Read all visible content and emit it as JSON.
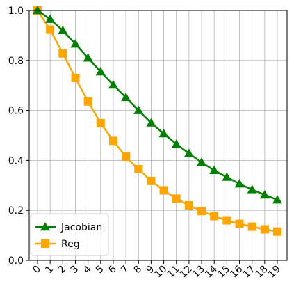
{
  "chart_data": {
    "type": "line",
    "x": [
      0,
      1,
      2,
      3,
      4,
      5,
      6,
      7,
      8,
      9,
      10,
      11,
      12,
      13,
      14,
      15,
      16,
      17,
      18,
      19
    ],
    "x_tick_labels": [
      "0",
      "1",
      "2",
      "3",
      "4",
      "5",
      "6",
      "7",
      "8",
      "9",
      "10",
      "11",
      "12",
      "13",
      "14",
      "15",
      "16",
      "17",
      "18",
      "19"
    ],
    "y_tick_labels": [
      "0.0",
      "0.2",
      "0.4",
      "0.6",
      "0.8",
      "1.0"
    ],
    "ylim": [
      0.0,
      1.0
    ],
    "grid": true,
    "legend_position": "bottom-left",
    "series": [
      {
        "name": "Jacobian",
        "color": "#008000",
        "marker": "triangle",
        "values": [
          1.0,
          0.965,
          0.92,
          0.866,
          0.81,
          0.755,
          0.702,
          0.652,
          0.6,
          0.55,
          0.507,
          0.465,
          0.428,
          0.392,
          0.36,
          0.333,
          0.306,
          0.283,
          0.262,
          0.242
        ]
      },
      {
        "name": "Reg",
        "color": "#FFA500",
        "marker": "square",
        "values": [
          1.0,
          0.923,
          0.828,
          0.73,
          0.636,
          0.549,
          0.478,
          0.415,
          0.365,
          0.318,
          0.28,
          0.247,
          0.22,
          0.197,
          0.177,
          0.16,
          0.146,
          0.135,
          0.124,
          0.115
        ]
      }
    ]
  }
}
